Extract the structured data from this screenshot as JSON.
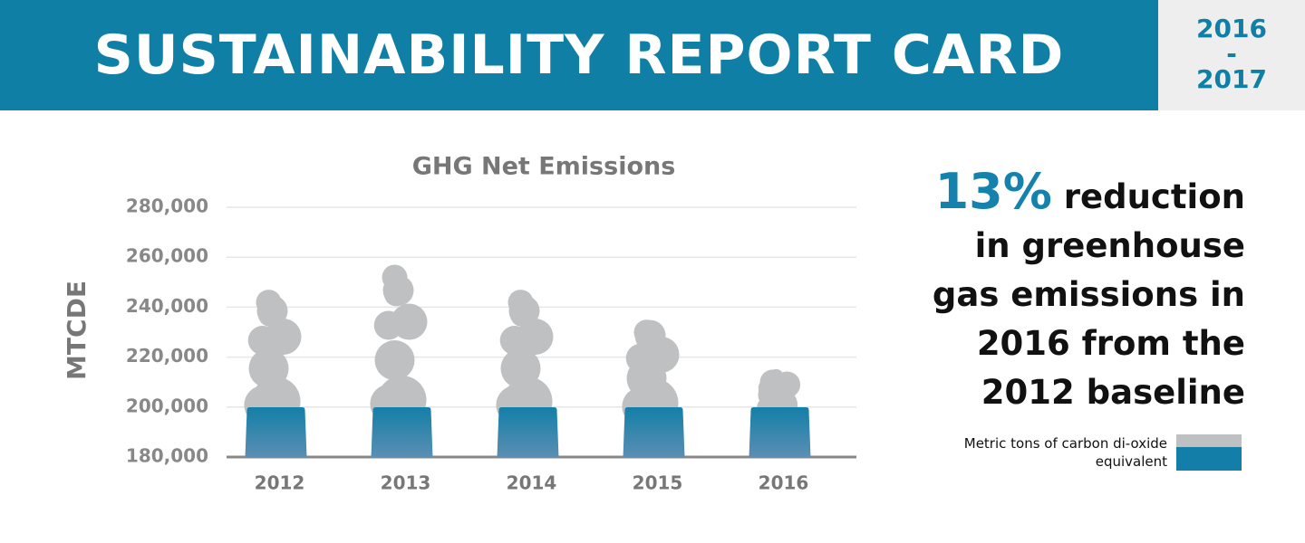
{
  "header": {
    "title": "SUSTAINABILITY REPORT CARD",
    "years": [
      "2016",
      "-",
      "2017"
    ]
  },
  "callout": {
    "highlight": "13%",
    "lines": [
      "reduction",
      "in greenhouse",
      "gas emissions in",
      "2016 from the",
      "2012 baseline"
    ]
  },
  "chart_data": {
    "type": "smokestack",
    "title": "GHG Net Emissions",
    "y_label": "MTCDE",
    "categories": [
      "2012",
      "2013",
      "2014",
      "2015",
      "2016"
    ],
    "series": [
      {
        "name": "Metric tons of carbon di-oxide equivalent",
        "color": "#bfc0c2",
        "values": [
          247000,
          257000,
          247000,
          235000,
          215000
        ]
      }
    ],
    "ylim": [
      180000,
      280000
    ],
    "yticks": [
      {
        "value": 180000,
        "label": "180,000"
      },
      {
        "value": 200000,
        "label": "200,000"
      },
      {
        "value": 220000,
        "label": "220,000"
      },
      {
        "value": 240000,
        "label": "240,000"
      },
      {
        "value": 260000,
        "label": "260,000"
      },
      {
        "value": 280000,
        "label": "280,000"
      }
    ],
    "grid": true,
    "base_color": "#137fa8"
  }
}
